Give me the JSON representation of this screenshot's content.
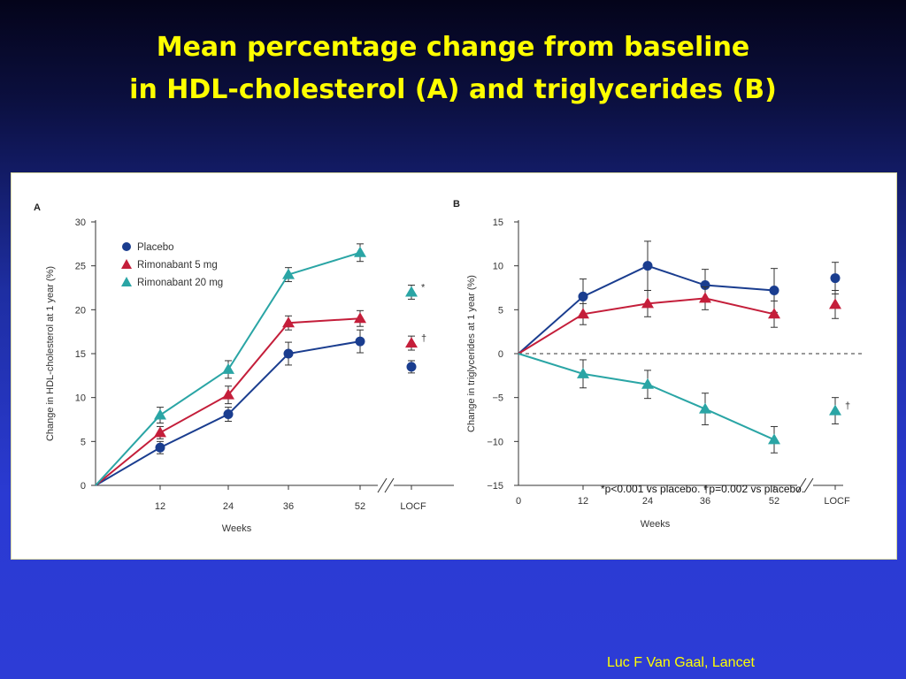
{
  "title": {
    "line1": "Mean percentage change from baseline",
    "line2": "in HDL-cholesterol (A) and triglycerides (B)"
  },
  "citation": "Luc F Van Gaal, Lancet",
  "colors": {
    "placebo": "#1a3d8f",
    "rimonabant_5": "#c41e3a",
    "rimonabant_20": "#2aa5a5"
  },
  "chart_data": [
    {
      "type": "line",
      "panel_label": "A",
      "ylabel": "Change in HDL-cholesterol at 1 year (%)",
      "xlabel": "Weeks",
      "x": [
        0,
        12,
        24,
        36,
        52
      ],
      "x_ticks": [
        "12",
        "24",
        "36",
        "52",
        "LOCF"
      ],
      "y_ticks": [
        "0",
        "5",
        "10",
        "15",
        "20",
        "25",
        "30"
      ],
      "ylim": [
        0,
        30
      ],
      "legend_position": "top-left",
      "series": [
        {
          "name": "Placebo",
          "marker": "circle",
          "color": "#1a3d8f",
          "values": [
            0,
            4.3,
            8.1,
            15.0,
            16.4
          ],
          "err": [
            0,
            0.7,
            0.8,
            1.3,
            1.3
          ],
          "locf": 13.5,
          "locf_err": 0.7,
          "locf_note": ""
        },
        {
          "name": "Rimonabant 5 mg",
          "marker": "triangle",
          "color": "#c41e3a",
          "values": [
            0,
            6.0,
            10.3,
            18.5,
            19.0
          ],
          "err": [
            0,
            0.7,
            1.0,
            0.8,
            0.9
          ],
          "locf": 16.2,
          "locf_err": 0.8,
          "locf_note": "†"
        },
        {
          "name": "Rimonabant 20 mg",
          "marker": "triangle",
          "color": "#2aa5a5",
          "values": [
            0,
            8.0,
            13.2,
            24.0,
            26.5
          ],
          "err": [
            0,
            0.9,
            1.0,
            0.8,
            1.0
          ],
          "locf": 22.0,
          "locf_err": 0.8,
          "locf_note": "*"
        }
      ]
    },
    {
      "type": "line",
      "panel_label": "B",
      "ylabel": "Change in triglycerides at 1 year (%)",
      "xlabel": "Weeks",
      "x": [
        0,
        12,
        24,
        36,
        52
      ],
      "x_ticks": [
        "0",
        "12",
        "24",
        "36",
        "52",
        "LOCF"
      ],
      "y_ticks": [
        "−15",
        "−10",
        "−5",
        "0",
        "5",
        "10",
        "15"
      ],
      "ylim": [
        -15,
        15
      ],
      "series": [
        {
          "name": "Placebo",
          "marker": "circle",
          "color": "#1a3d8f",
          "values": [
            0,
            6.5,
            10.0,
            7.8,
            7.2
          ],
          "err": [
            0,
            2.0,
            2.8,
            1.8,
            2.5
          ],
          "locf": 8.6,
          "locf_err": 1.8,
          "locf_note": ""
        },
        {
          "name": "Rimonabant 5 mg",
          "marker": "triangle",
          "color": "#c41e3a",
          "values": [
            0,
            4.5,
            5.7,
            6.3,
            4.5
          ],
          "err": [
            0,
            1.2,
            1.5,
            1.3,
            1.5
          ],
          "locf": 5.6,
          "locf_err": 1.6,
          "locf_note": ""
        },
        {
          "name": "Rimonabant 20 mg",
          "marker": "triangle",
          "color": "#2aa5a5",
          "values": [
            0,
            -2.3,
            -3.5,
            -6.3,
            -9.8
          ],
          "err": [
            0,
            1.6,
            1.6,
            1.8,
            1.5
          ],
          "locf": -6.5,
          "locf_err": 1.5,
          "locf_note": "†"
        }
      ],
      "reference_line": 0,
      "footnote": "*p<0.001 vs placebo. †p=0.002 vs placebo."
    }
  ]
}
